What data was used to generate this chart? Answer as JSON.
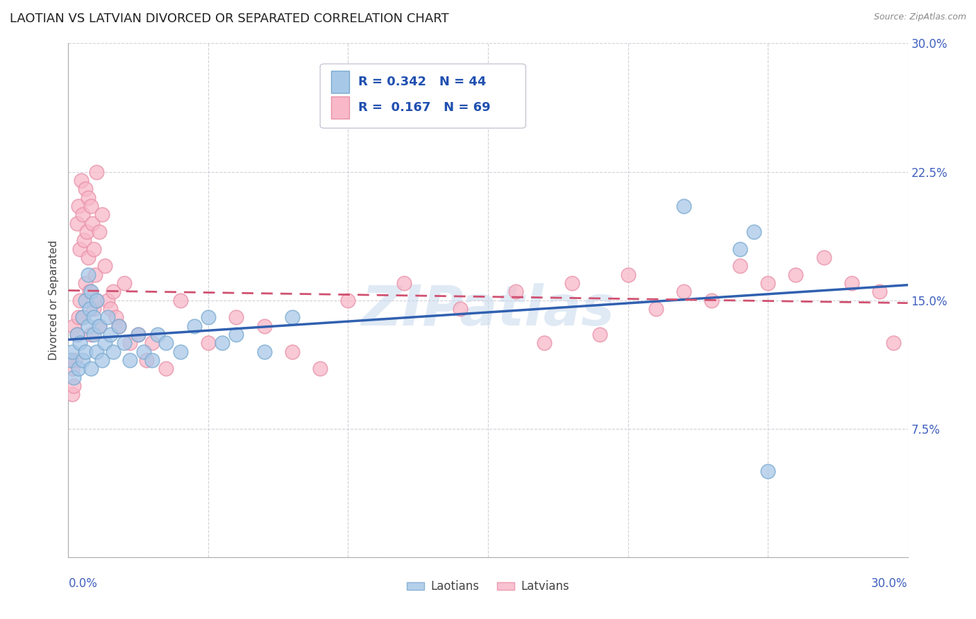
{
  "title": "LAOTIAN VS LATVIAN DIVORCED OR SEPARATED CORRELATION CHART",
  "source": "Source: ZipAtlas.com",
  "ylabel": "Divorced or Separated",
  "xlim": [
    0.0,
    30.0
  ],
  "ylim": [
    0.0,
    30.0
  ],
  "laotian_R": 0.342,
  "laotian_N": 44,
  "latvian_R": 0.167,
  "latvian_N": 69,
  "laotian_color": "#a8c8e8",
  "latvian_color": "#f8b8c8",
  "laotian_edge_color": "#7aaad0",
  "latvian_edge_color": "#e890a8",
  "laotian_line_color": "#3060b0",
  "latvian_line_color": "#d05070",
  "watermark": "ZIPatlas",
  "watermark_color_r": 0.78,
  "watermark_color_g": 0.85,
  "watermark_color_b": 0.93,
  "laotian_label": "Laotians",
  "latvian_label": "Latvians",
  "laotian_points_x": [
    0.1,
    0.15,
    0.2,
    0.3,
    0.35,
    0.4,
    0.5,
    0.5,
    0.6,
    0.6,
    0.7,
    0.7,
    0.75,
    0.8,
    0.8,
    0.9,
    0.9,
    1.0,
    1.0,
    1.1,
    1.2,
    1.3,
    1.4,
    1.5,
    1.6,
    1.8,
    2.0,
    2.2,
    2.5,
    2.7,
    3.0,
    3.2,
    3.5,
    4.0,
    4.5,
    5.0,
    5.5,
    6.0,
    7.0,
    8.0,
    22.0,
    24.0,
    24.5,
    25.0
  ],
  "laotian_points_y": [
    11.5,
    12.0,
    10.5,
    13.0,
    11.0,
    12.5,
    14.0,
    11.5,
    15.0,
    12.0,
    16.5,
    13.5,
    14.5,
    11.0,
    15.5,
    13.0,
    14.0,
    12.0,
    15.0,
    13.5,
    11.5,
    12.5,
    14.0,
    13.0,
    12.0,
    13.5,
    12.5,
    11.5,
    13.0,
    12.0,
    11.5,
    13.0,
    12.5,
    12.0,
    13.5,
    14.0,
    12.5,
    13.0,
    12.0,
    14.0,
    20.5,
    18.0,
    19.0,
    5.0
  ],
  "latvian_points_x": [
    0.1,
    0.15,
    0.15,
    0.2,
    0.2,
    0.25,
    0.3,
    0.3,
    0.35,
    0.35,
    0.4,
    0.4,
    0.45,
    0.5,
    0.5,
    0.55,
    0.6,
    0.6,
    0.65,
    0.7,
    0.7,
    0.75,
    0.8,
    0.8,
    0.85,
    0.9,
    0.9,
    0.95,
    1.0,
    1.0,
    1.1,
    1.1,
    1.2,
    1.3,
    1.4,
    1.5,
    1.6,
    1.7,
    1.8,
    2.0,
    2.2,
    2.5,
    2.8,
    3.0,
    3.5,
    4.0,
    5.0,
    6.0,
    7.0,
    8.0,
    9.0,
    10.0,
    12.0,
    14.0,
    16.0,
    17.0,
    18.0,
    19.0,
    20.0,
    21.0,
    22.0,
    23.0,
    24.0,
    25.0,
    26.0,
    27.0,
    28.0,
    29.0,
    29.5
  ],
  "latvian_points_y": [
    11.5,
    9.5,
    11.0,
    10.0,
    13.5,
    11.5,
    19.5,
    13.0,
    20.5,
    14.0,
    18.0,
    15.0,
    22.0,
    20.0,
    14.0,
    18.5,
    21.5,
    16.0,
    19.0,
    21.0,
    17.5,
    15.5,
    20.5,
    13.0,
    19.5,
    18.0,
    14.5,
    16.5,
    22.5,
    15.0,
    19.0,
    13.5,
    20.0,
    17.0,
    15.0,
    14.5,
    15.5,
    14.0,
    13.5,
    16.0,
    12.5,
    13.0,
    11.5,
    12.5,
    11.0,
    15.0,
    12.5,
    14.0,
    13.5,
    12.0,
    11.0,
    15.0,
    16.0,
    14.5,
    15.5,
    12.5,
    16.0,
    13.0,
    16.5,
    14.5,
    15.5,
    15.0,
    17.0,
    16.0,
    16.5,
    17.5,
    16.0,
    15.5,
    12.5
  ]
}
